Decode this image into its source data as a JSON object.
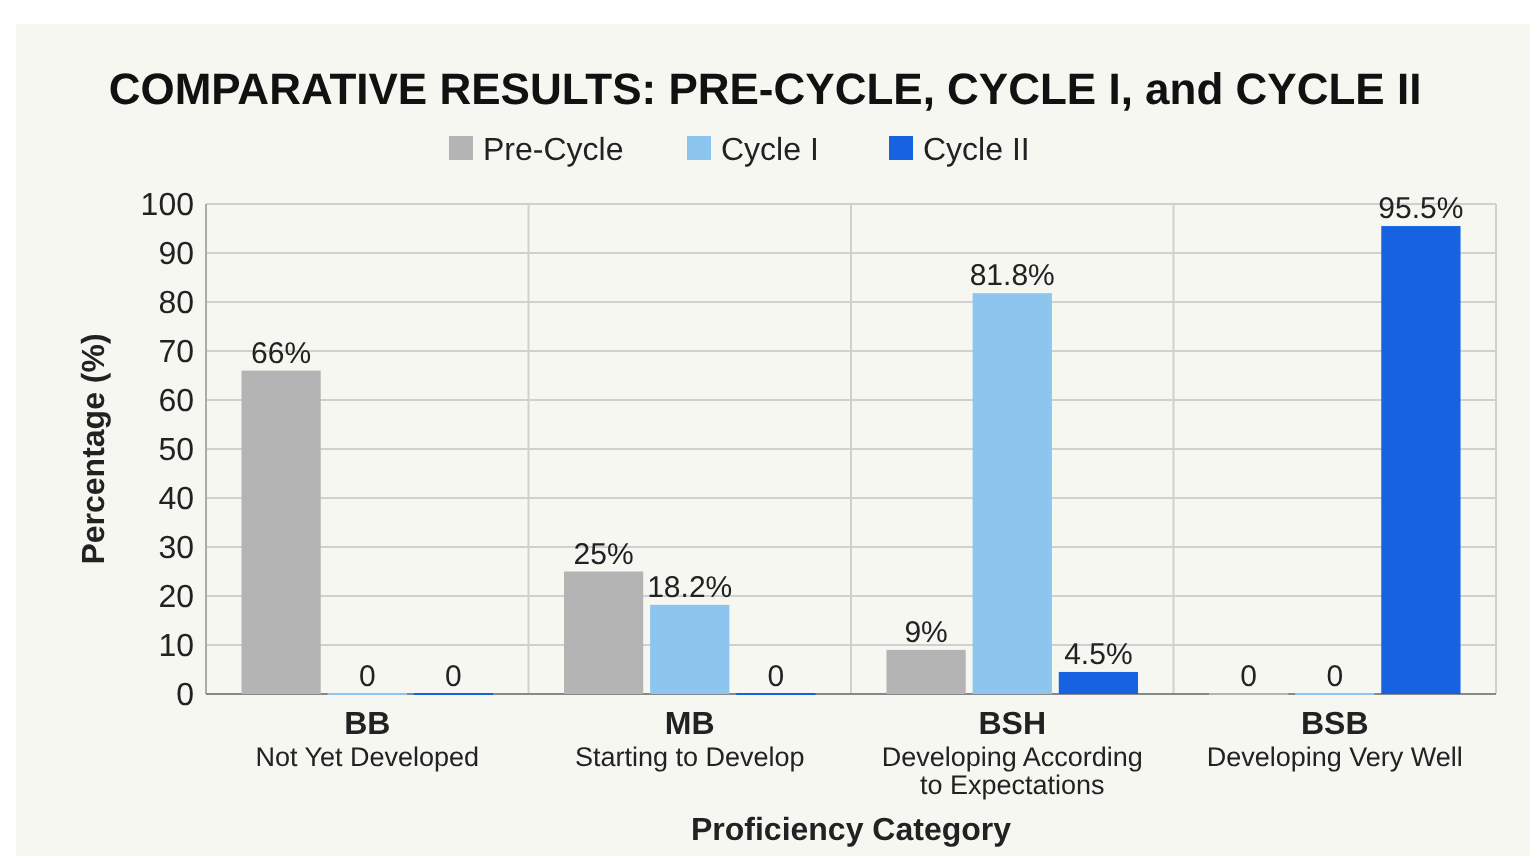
{
  "chart_data": {
    "type": "bar",
    "title": "COMPARATIVE RESULTS: PRE-CYCLE, CYCLE I, and CYCLE II",
    "xlabel": "Proficiency Category",
    "ylabel": "Percentage (%)",
    "categories": [
      "BB\nNot Yet Developed",
      "MB\nStarting to Develop",
      "BSH\nDeveloping According\nto Expectations",
      "BSB\nDeveloping Very Well"
    ],
    "series": [
      {
        "name": "Pre-Cycle",
        "color": "#b4b4b4",
        "values": [
          66,
          25,
          9,
          0
        ],
        "value_labels": [
          "66%",
          "25%",
          "9%",
          "0"
        ]
      },
      {
        "name": "Cycle I",
        "color": "#8cc6ee",
        "values": [
          0,
          18.2,
          81.8,
          0
        ],
        "value_labels": [
          "0",
          "18.2%",
          "81.8%",
          "0"
        ]
      },
      {
        "name": "Cycle II",
        "color": "#1662e0",
        "values": [
          0,
          0,
          4.5,
          95.5
        ],
        "value_labels": [
          "0",
          "0",
          "4.5%",
          "95.5%"
        ]
      }
    ],
    "ylim": [
      0,
      100
    ],
    "yticks": [
      0,
      10,
      20,
      30,
      40,
      50,
      60,
      70,
      80,
      90,
      100
    ],
    "grid": true,
    "legend": "top"
  }
}
